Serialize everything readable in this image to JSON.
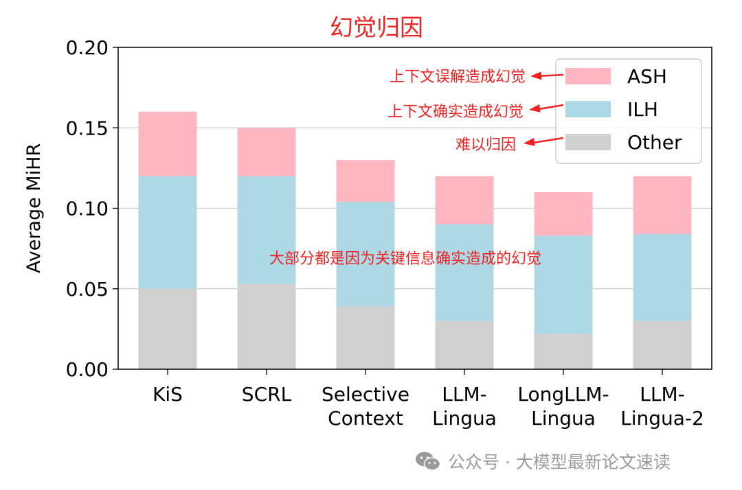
{
  "chart_data": {
    "type": "bar",
    "stacked": true,
    "title": "幻觉归因",
    "xlabel": "",
    "ylabel": "Average MiHR",
    "ylim": [
      0,
      0.2
    ],
    "yticks": [
      "0.00",
      "0.05",
      "0.10",
      "0.15",
      "0.20"
    ],
    "ytick_values": [
      0,
      0.05,
      0.1,
      0.15,
      0.2
    ],
    "grid": "y",
    "legend_position": "top-right",
    "categories": [
      [
        "KiS"
      ],
      [
        "SCRL"
      ],
      [
        "Selective",
        "Context"
      ],
      [
        "LLM-",
        "Lingua"
      ],
      [
        "LongLLM-",
        "Lingua"
      ],
      [
        "LLM-",
        "Lingua-2"
      ]
    ],
    "series": [
      {
        "name": "Other",
        "color": "#d0d0d0",
        "values": [
          0.05,
          0.053,
          0.039,
          0.03,
          0.022,
          0.03
        ]
      },
      {
        "name": "ILH",
        "color": "#add8e6",
        "values": [
          0.07,
          0.067,
          0.065,
          0.06,
          0.061,
          0.054
        ]
      },
      {
        "name": "ASH",
        "color": "#ffb6c1",
        "values": [
          0.04,
          0.03,
          0.026,
          0.03,
          0.027,
          0.036
        ]
      }
    ],
    "legend_order": [
      "ASH",
      "ILH",
      "Other"
    ],
    "annotations": [
      {
        "text": "上下文误解造成幻觉",
        "target": "ASH"
      },
      {
        "text": "上下文确实造成幻觉",
        "target": "ILH"
      },
      {
        "text": "难以归因",
        "target": "Other"
      },
      {
        "text": "大部分都是因为关键信息确实造成的幻觉",
        "target": "plot"
      }
    ],
    "annotation_color": "#ee2222"
  },
  "watermark": {
    "text": "公众号 · 大模型最新论文速读",
    "icon": "wechat-icon"
  }
}
